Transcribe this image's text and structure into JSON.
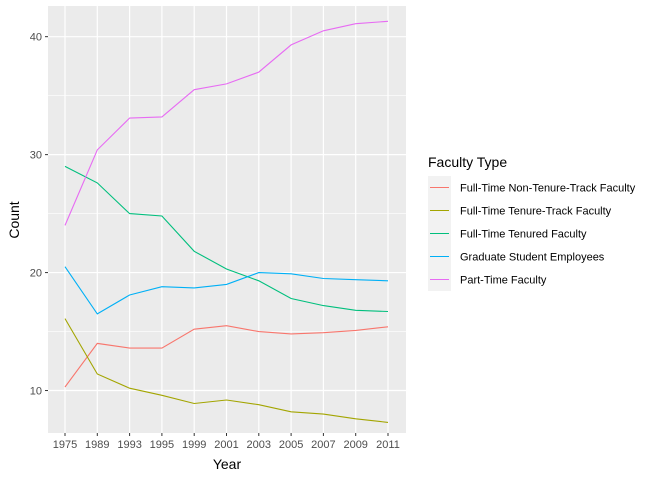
{
  "chart_data": {
    "type": "line",
    "xlabel": "Year",
    "ylabel": "Count",
    "categories": [
      "1975",
      "1989",
      "1993",
      "1995",
      "1999",
      "2001",
      "2003",
      "2005",
      "2007",
      "2009",
      "2011"
    ],
    "ylim": [
      6.4,
      42.6
    ],
    "yticks": [
      "10",
      "20",
      "30",
      "40"
    ],
    "grid": true,
    "legend": {
      "title": "Faculty Type",
      "position": "right"
    },
    "series": [
      {
        "name": "Full-Time Non-Tenure-Track Faculty",
        "color": "#F8766D",
        "values": [
          10.3,
          14.0,
          13.6,
          13.6,
          15.2,
          15.5,
          15.0,
          14.8,
          14.9,
          15.1,
          15.4
        ]
      },
      {
        "name": "Full-Time Tenure-Track Faculty",
        "color": "#A3A500",
        "values": [
          16.1,
          11.4,
          10.2,
          9.6,
          8.9,
          9.2,
          8.8,
          8.2,
          8.0,
          7.6,
          7.3
        ]
      },
      {
        "name": "Full-Time Tenured Faculty",
        "color": "#00BF7D",
        "values": [
          29.0,
          27.6,
          25.0,
          24.8,
          21.8,
          20.3,
          19.3,
          17.8,
          17.2,
          16.8,
          16.7
        ]
      },
      {
        "name": "Graduate Student Employees",
        "color": "#00B0F6",
        "values": [
          20.5,
          16.5,
          18.1,
          18.8,
          18.7,
          19.0,
          20.0,
          19.9,
          19.5,
          19.4,
          19.3
        ]
      },
      {
        "name": "Part-Time Faculty",
        "color": "#E76BF3",
        "values": [
          24.0,
          30.4,
          33.1,
          33.2,
          35.5,
          36.0,
          37.0,
          39.3,
          40.5,
          41.1,
          41.3
        ]
      }
    ]
  }
}
